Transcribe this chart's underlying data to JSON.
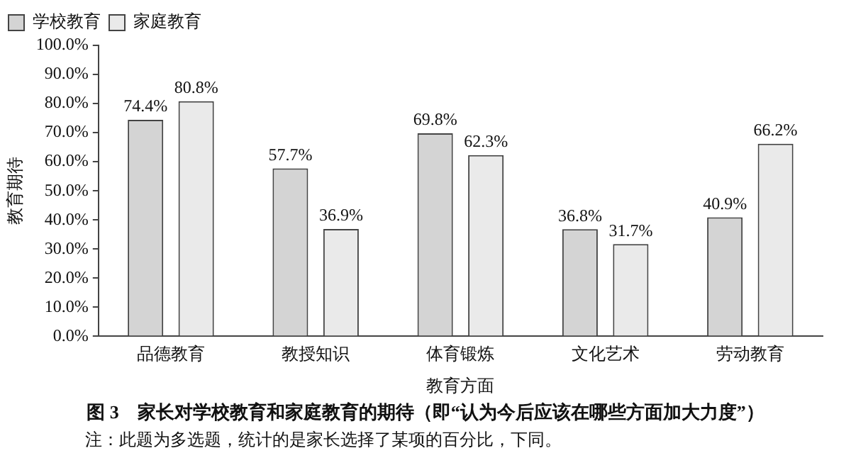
{
  "chart_data": {
    "type": "bar",
    "title": "图 3　家长对学校教育和家庭教育的期待（即“认为今后应该在哪些方面加大力度”）",
    "xlabel": "教育方面",
    "ylabel": "教育期待",
    "categories": [
      "品德教育",
      "教授知识",
      "体育锻炼",
      "文化艺术",
      "劳动教育"
    ],
    "series": [
      {
        "name": "学校教育",
        "color": "#d4d4d4",
        "values": [
          74.4,
          57.7,
          69.8,
          36.8,
          40.9
        ],
        "value_labels": [
          "74.4%",
          "57.7%",
          "69.8%",
          "36.8%",
          "40.9%"
        ]
      },
      {
        "name": "家庭教育",
        "color": "#eaeaea",
        "values": [
          80.8,
          36.9,
          62.3,
          31.7,
          66.2
        ],
        "value_labels": [
          "80.8%",
          "36.9%",
          "62.3%",
          "31.7%",
          "66.2%"
        ]
      }
    ],
    "ylim": [
      0,
      100
    ],
    "yticks": [
      {
        "value": 0,
        "label": "0.0%"
      },
      {
        "value": 10,
        "label": "10.0%"
      },
      {
        "value": 20,
        "label": "20.0%"
      },
      {
        "value": 30,
        "label": "30.0%"
      },
      {
        "value": 40,
        "label": "40.0%"
      },
      {
        "value": 50,
        "label": "50.0%"
      },
      {
        "value": 60,
        "label": "60.0%"
      },
      {
        "value": 70,
        "label": "70.0%"
      },
      {
        "value": 80,
        "label": "80.0%"
      },
      {
        "value": 90,
        "label": "90.0%"
      },
      {
        "value": 100,
        "label": "100.0%"
      }
    ],
    "grid": false,
    "legend": "top left",
    "annotations": [
      "注：此题为多选题，统计的是家长选择了某项的百分比，下同。"
    ]
  }
}
